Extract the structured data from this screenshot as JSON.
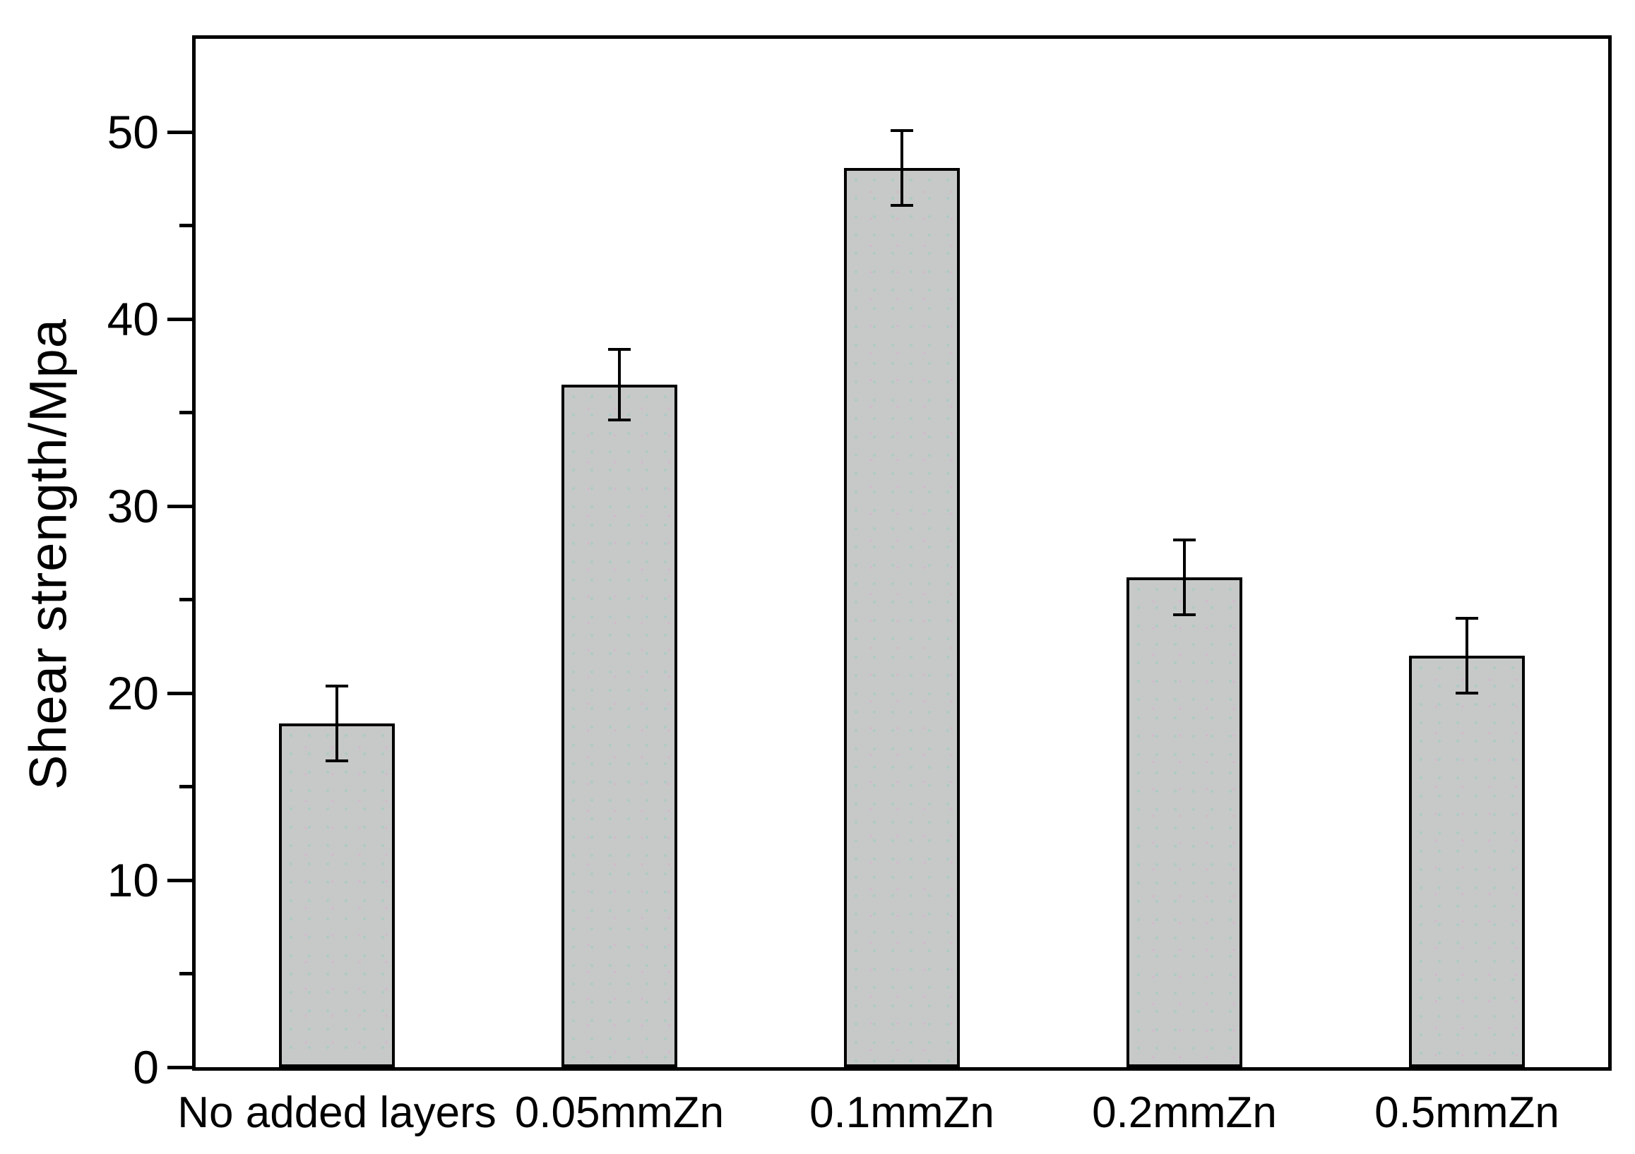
{
  "figure": {
    "background": "#ffffff",
    "axis_color": "#000000",
    "text_color": "#000000"
  },
  "chart_data": {
    "type": "bar",
    "title": "",
    "xlabel": "",
    "ylabel": "Shear strength/Mpa",
    "categories": [
      "No added layers",
      "0.05mmZn",
      "0.1mmZn",
      "0.2mmZn",
      "0.5mmZn"
    ],
    "values": [
      18.4,
      36.5,
      48.1,
      26.2,
      22.0
    ],
    "error_bars": [
      2.0,
      1.9,
      2.0,
      2.0,
      2.0
    ],
    "ylim": [
      0,
      55
    ],
    "ytick_major": [
      0,
      10,
      20,
      30,
      40,
      50
    ],
    "ytick_labels": [
      "0",
      "10",
      "20",
      "30",
      "40",
      "50"
    ],
    "ytick_minor": [
      5,
      15,
      25,
      35,
      45
    ],
    "grid": false,
    "legend": false,
    "bar_fill": "#c7c9c8",
    "bar_edge": "#000000",
    "bar_width_frac": 0.41,
    "error_color": "#000000"
  }
}
